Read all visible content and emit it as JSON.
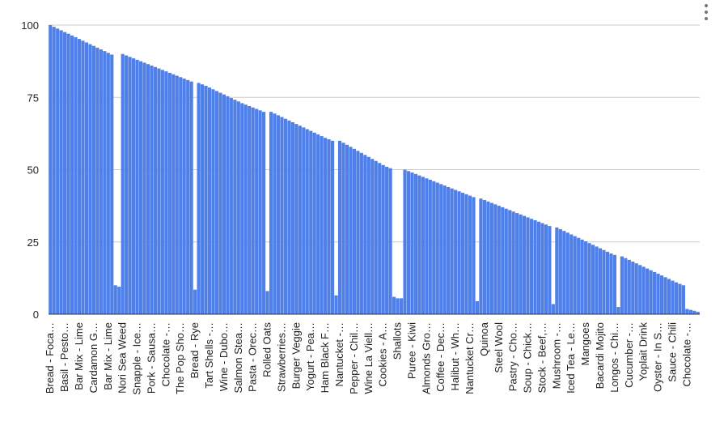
{
  "chart_data": {
    "type": "bar",
    "color": "#4f80e9",
    "grid": true,
    "ylim": [
      0,
      100
    ],
    "yticks": [
      0,
      25,
      50,
      75,
      100
    ],
    "categories": [
      "Bread - Foca…",
      null,
      null,
      null,
      "Basil - Pesto…",
      null,
      null,
      null,
      "Bar Mix - Lime",
      null,
      null,
      null,
      "Cardamon G…",
      null,
      null,
      null,
      "Bar Mix - Lime",
      null,
      null,
      null,
      "Nori Sea Weed",
      null,
      null,
      null,
      "Snapple - Ice…",
      null,
      null,
      null,
      "Pork - Sausa…",
      null,
      null,
      null,
      "Chocolate -…",
      null,
      null,
      null,
      "The Pop Sho…",
      null,
      null,
      null,
      "Bread - Rye",
      null,
      null,
      null,
      "Tart Shells -…",
      null,
      null,
      null,
      "Wine - Dubo…",
      null,
      null,
      null,
      "Salmon Stea…",
      null,
      null,
      null,
      "Pasta - Orec…",
      null,
      null,
      null,
      "Rolled Oats",
      null,
      null,
      null,
      "Strawberries…",
      null,
      null,
      null,
      "Burger Veggie",
      null,
      null,
      null,
      "Yogurt - Pea…",
      null,
      null,
      null,
      "Ham Black F…",
      null,
      null,
      null,
      "Nantucket -…",
      null,
      null,
      null,
      "Pepper - Chil…",
      null,
      null,
      null,
      "Wine La Viell…",
      null,
      null,
      null,
      "Cookies - A…",
      null,
      null,
      null,
      "Shallots",
      null,
      null,
      null,
      "Puree - Kiwi",
      null,
      null,
      null,
      "Almonds Gro…",
      null,
      null,
      null,
      "Coffee - Dec…",
      null,
      null,
      null,
      "Halibut - Wh…",
      null,
      null,
      null,
      "Nantucket Cr…",
      null,
      null,
      null,
      "Quinoa",
      null,
      null,
      null,
      "Steel Wool",
      null,
      null,
      null,
      "Pastry - Cho…",
      null,
      null,
      null,
      "Soup - Chick…",
      null,
      null,
      null,
      "Stock - Beef,…",
      null,
      null,
      null,
      "Mushroom -…",
      null,
      null,
      null,
      "Iced Tea - Le…",
      null,
      null,
      null,
      "Mangoes",
      null,
      null,
      null,
      "Bacardi Mojito",
      null,
      null,
      null,
      "Longos - Chi…",
      null,
      null,
      null,
      "Cucumber -…",
      null,
      null,
      null,
      "Yoplait Drink",
      null,
      null,
      null,
      "Oyster - In S…",
      null,
      null,
      null,
      "Sauce - Chili",
      null,
      null,
      null,
      "Chocolate -…",
      null,
      null,
      null
    ],
    "values": [
      100,
      99.4,
      98.8,
      98.2,
      97.6,
      97,
      96.4,
      95.8,
      95.2,
      94.6,
      94,
      93.4,
      92.8,
      92.2,
      91.6,
      91,
      90.4,
      89.8,
      10,
      9.5,
      90,
      89.5,
      89,
      88.5,
      88,
      87.5,
      87,
      86.5,
      86,
      85.5,
      85,
      84.5,
      84,
      83.5,
      83,
      82.5,
      82,
      81.5,
      81,
      80.5,
      8.5,
      80,
      79.5,
      79,
      78.4,
      77.8,
      77.2,
      76.6,
      76,
      75.4,
      74.8,
      74.2,
      73.6,
      73,
      72.5,
      72,
      71.5,
      71,
      70.5,
      70,
      8,
      70,
      69.4,
      68.8,
      68.2,
      67.6,
      67,
      66.4,
      65.8,
      65.2,
      64.6,
      64,
      63.4,
      62.8,
      62.2,
      61.6,
      61,
      60.5,
      60,
      6.5,
      60,
      59.3,
      58.6,
      57.9,
      57.2,
      56.5,
      55.8,
      55.1,
      54.4,
      53.7,
      53,
      52.3,
      51.6,
      51,
      50.5,
      6,
      5.5,
      5.5,
      50,
      49.5,
      49,
      48.5,
      48,
      47.5,
      47,
      46.5,
      46,
      45.5,
      45,
      44.5,
      44,
      43.5,
      43,
      42.5,
      42,
      41.5,
      41,
      40.5,
      4.5,
      40,
      39.5,
      39,
      38.5,
      38,
      37.5,
      37,
      36.5,
      36,
      35.5,
      35,
      34.5,
      34,
      33.5,
      33,
      32.5,
      32,
      31.5,
      31,
      30.5,
      3.5,
      30,
      29.4,
      28.8,
      28.2,
      27.6,
      27,
      26.4,
      25.8,
      25.2,
      24.6,
      24,
      23.4,
      22.8,
      22.2,
      21.6,
      21,
      20.5,
      2.5,
      20,
      19.4,
      18.8,
      18.2,
      17.6,
      17,
      16.4,
      15.8,
      15.2,
      14.6,
      14,
      13.4,
      12.8,
      12.2,
      11.6,
      11,
      10.5,
      10,
      1.8,
      1.5,
      1.2,
      0.8
    ]
  }
}
